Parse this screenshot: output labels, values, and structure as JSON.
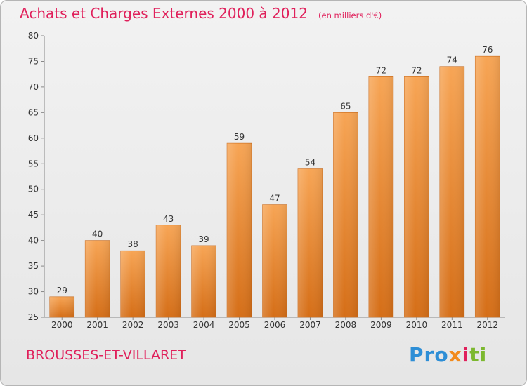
{
  "chart_data": {
    "type": "bar",
    "title": "Achats et Charges Externes 2000 à 2012",
    "unit": "(en milliers d'€)",
    "categories": [
      "2000",
      "2001",
      "2002",
      "2003",
      "2004",
      "2005",
      "2006",
      "2007",
      "2008",
      "2009",
      "2010",
      "2011",
      "2012"
    ],
    "values": [
      29,
      40,
      38,
      43,
      39,
      59,
      47,
      54,
      65,
      72,
      72,
      74,
      76
    ],
    "ylim": [
      25,
      80
    ],
    "yticks": [
      25,
      30,
      35,
      40,
      45,
      50,
      55,
      60,
      65,
      70,
      75,
      80
    ],
    "grid": false,
    "bar_color": "#e8822a"
  },
  "footer": {
    "city": "BROUSSES-ET-VILLARET",
    "logo": {
      "p1": "Pro",
      "p2": "x",
      "p3": "i",
      "p4": "ti"
    }
  }
}
